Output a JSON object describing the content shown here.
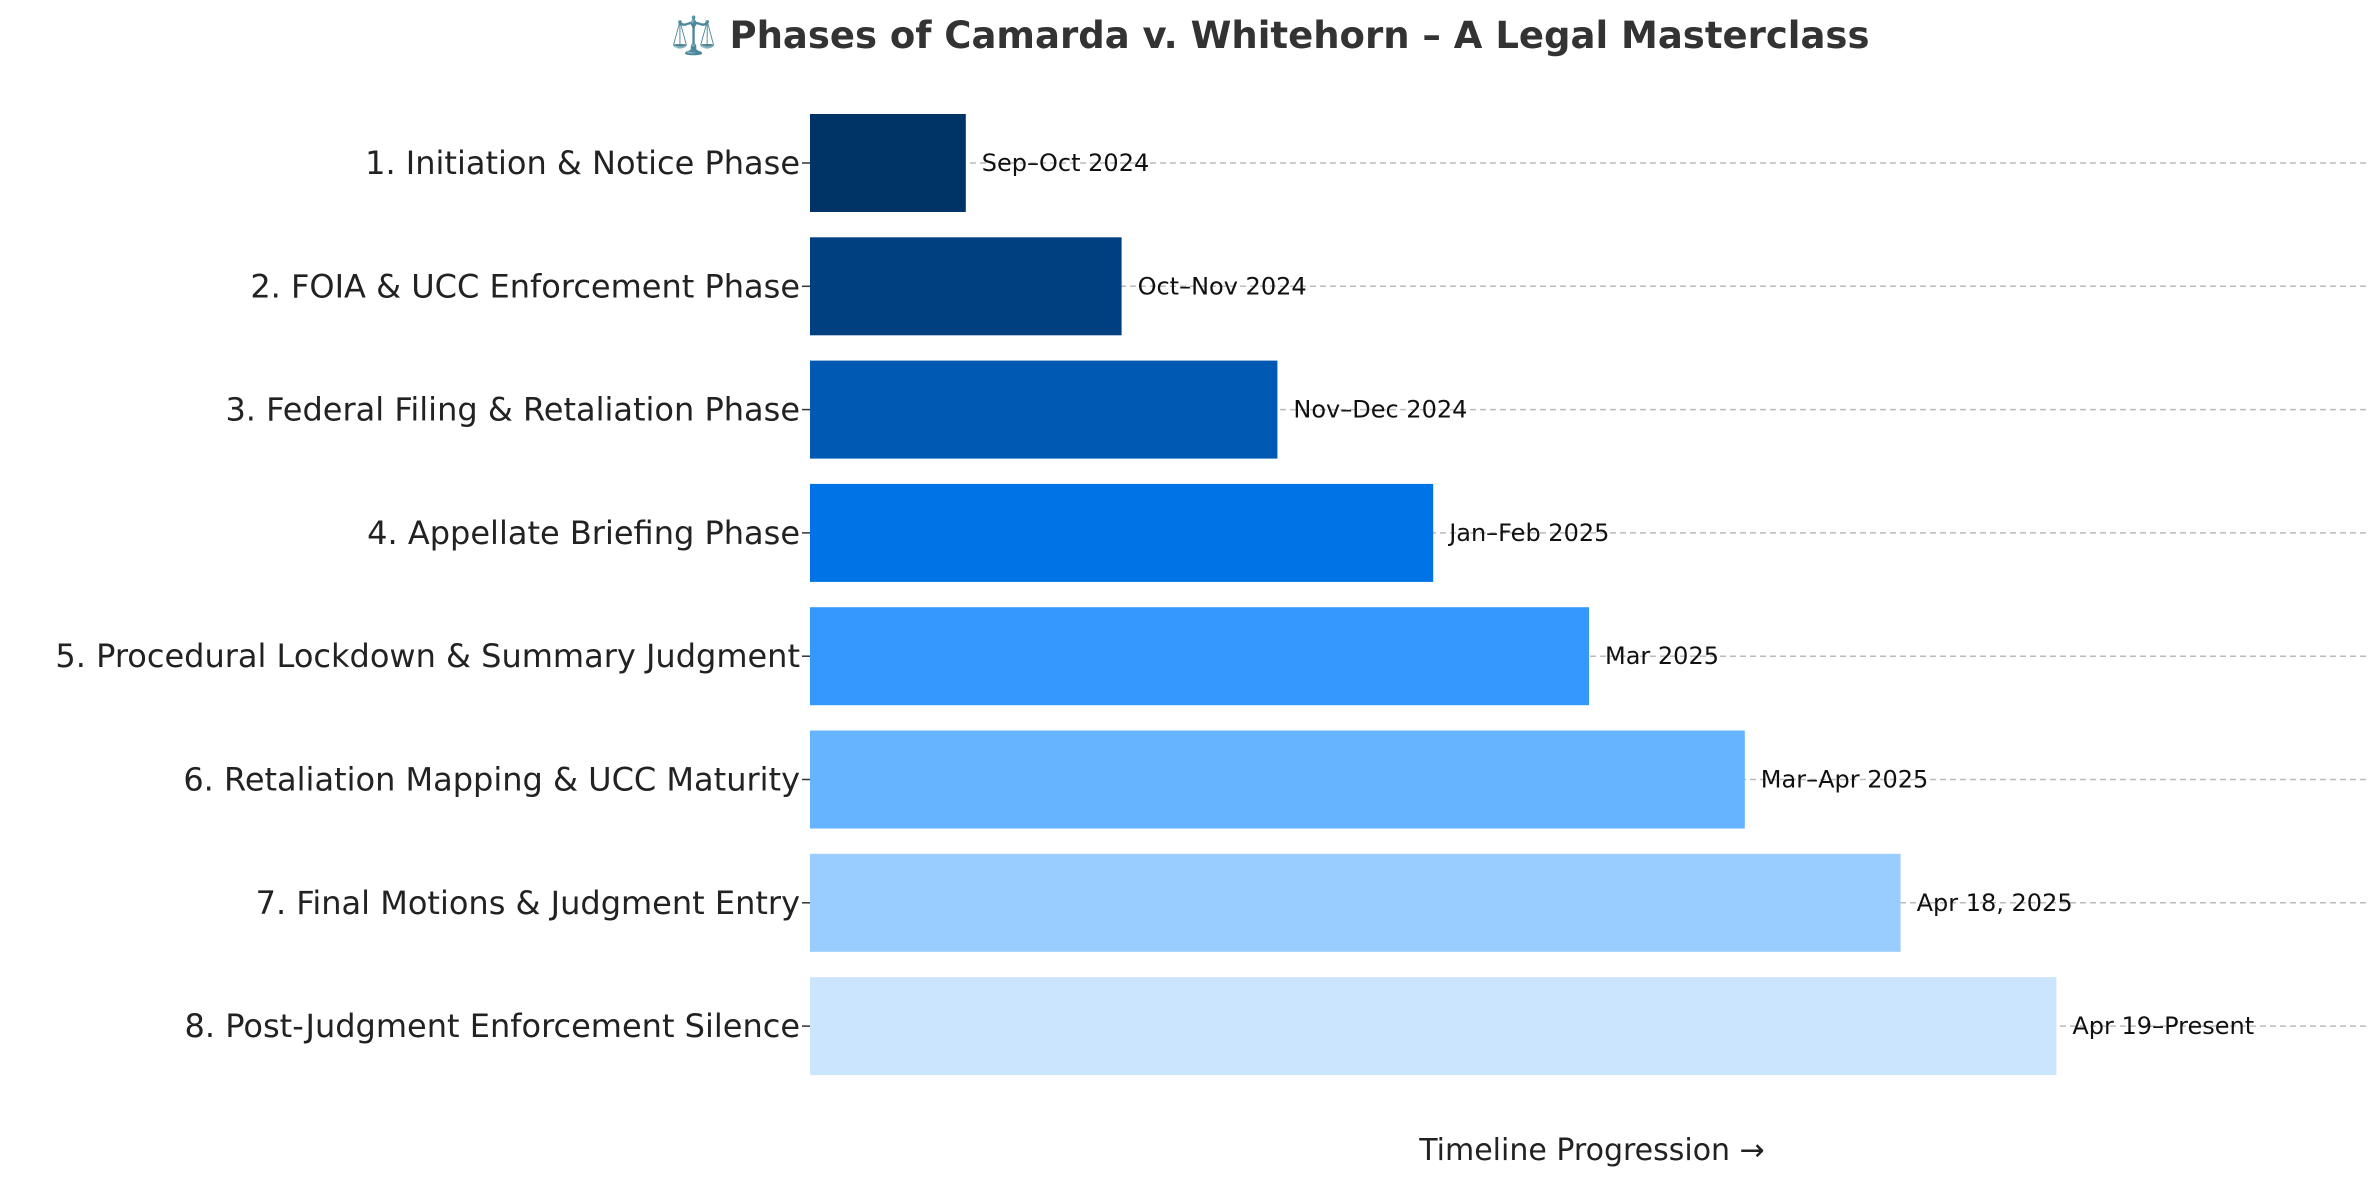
{
  "chart_data": {
    "type": "bar",
    "orientation": "horizontal",
    "title": "⚖️ Phases of Camarda v. Whitehorn – A Legal Masterclass",
    "xlabel": "Timeline Progression →",
    "ylabel": "",
    "grid": "horizontal dashed",
    "categories": [
      "1. Initiation & Notice Phase",
      "2. FOIA & UCC Enforcement Phase",
      "3. Federal Filing & Retaliation Phase",
      "4. Appellate Briefing Phase",
      "5. Procedural Lockdown & Summary Judgment",
      "6. Retaliation Mapping & UCC Maturity",
      "7. Final Motions & Judgment Entry",
      "8. Post-Judgment Enforcement Silence"
    ],
    "values": [
      1,
      2,
      3,
      4,
      5,
      6,
      7,
      8
    ],
    "xlim": [
      0,
      10
    ],
    "data_labels": [
      "Sep–Oct 2024",
      "Oct–Nov 2024",
      "Nov–Dec 2024",
      "Jan–Feb 2025",
      "Mar 2025",
      "Mar–Apr 2025",
      "Apr 18, 2025",
      "Apr 19–Present"
    ],
    "colors": [
      "#003366",
      "#004080",
      "#0059b3",
      "#0073e6",
      "#3399ff",
      "#66b3ff",
      "#99ccff",
      "#cce5ff"
    ],
    "grid_color": "#bbbbbb"
  }
}
